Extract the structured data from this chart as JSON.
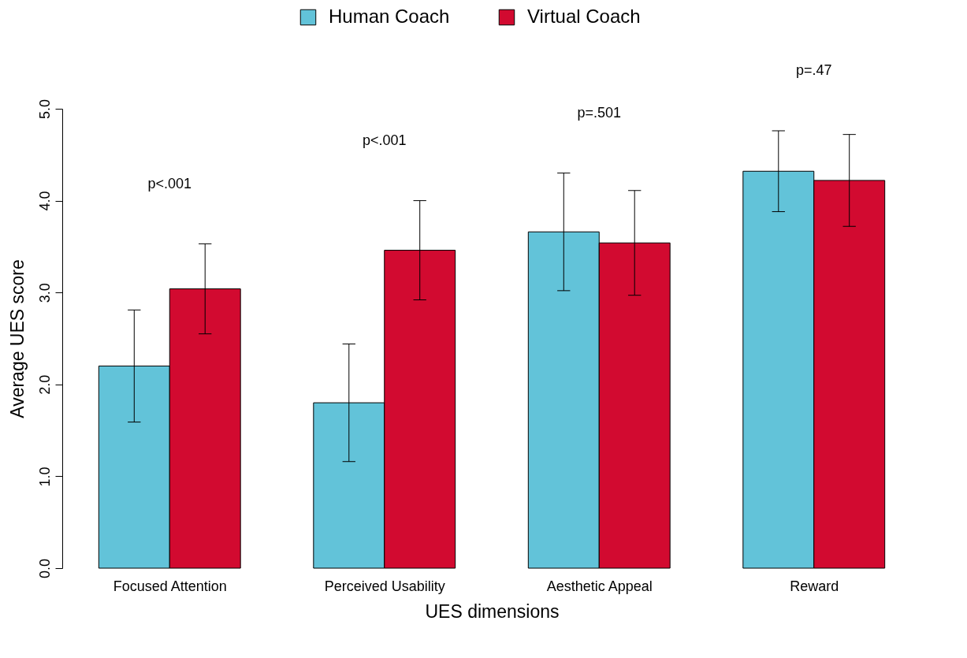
{
  "chart_data": {
    "type": "bar",
    "xlabel": "UES dimensions",
    "ylabel": "Average UES score",
    "categories": [
      "Focused Attention",
      "Perceived Usability",
      "Aesthetic Appeal",
      "Reward"
    ],
    "series": [
      {
        "name": "Human Coach",
        "color": "#62c3d9",
        "values": [
          2.2,
          1.8,
          3.66,
          4.32
        ],
        "errors": [
          0.61,
          0.64,
          0.64,
          0.44
        ]
      },
      {
        "name": "Virtual Coach",
        "color": "#d20a30",
        "values": [
          3.04,
          3.46,
          3.54,
          4.22
        ],
        "errors": [
          0.49,
          0.54,
          0.57,
          0.5
        ]
      }
    ],
    "annotations": [
      "p<.001",
      "p<.001",
      "p=.501",
      "p=.47"
    ],
    "ylim": [
      0,
      5
    ],
    "yticks": [
      {
        "value": 0,
        "label": "0.0"
      },
      {
        "value": 1,
        "label": "1.0"
      },
      {
        "value": 2,
        "label": "2.0"
      },
      {
        "value": 3,
        "label": "3.0"
      },
      {
        "value": 4,
        "label": "4.0"
      },
      {
        "value": 5,
        "label": "5.0"
      }
    ],
    "grid": false,
    "legend": "top"
  }
}
